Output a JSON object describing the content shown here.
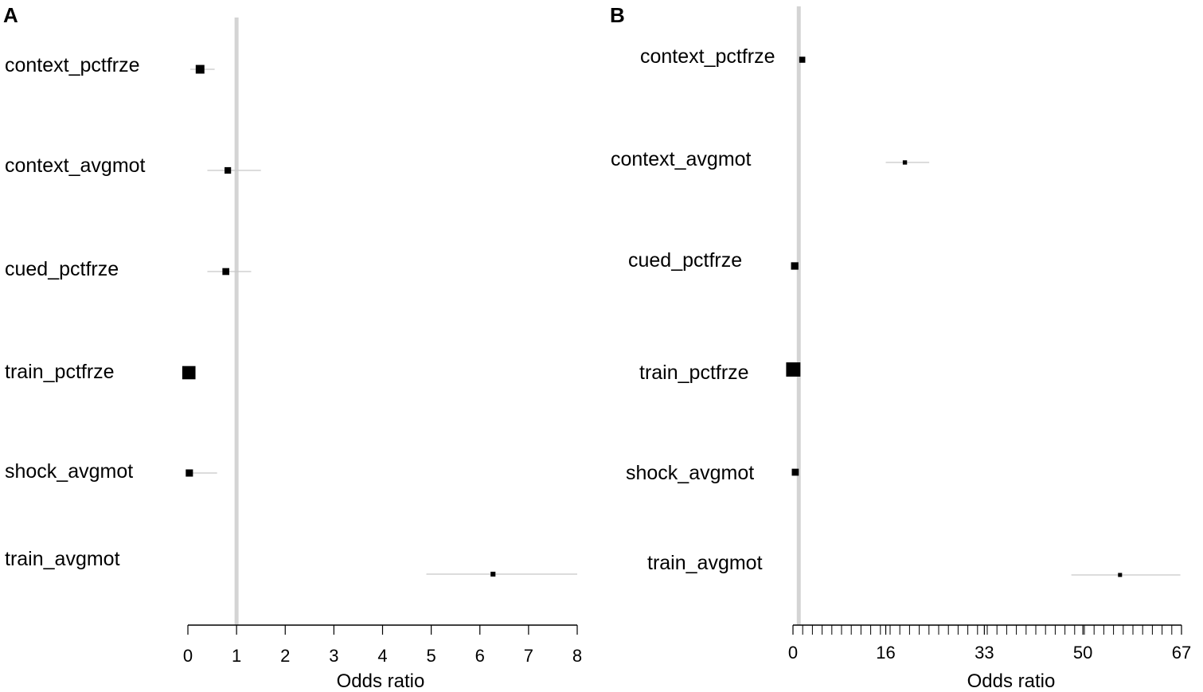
{
  "chart_data": [
    {
      "type": "forest",
      "panel_label": "A",
      "xlabel": "Odds ratio",
      "xlim": [
        0,
        8
      ],
      "ticks": [
        0,
        1,
        2,
        3,
        4,
        5,
        6,
        7,
        8
      ],
      "tick_labels": [
        "0",
        "1",
        "2",
        "3",
        "4",
        "5",
        "6",
        "7",
        "8"
      ],
      "reference_line": 1,
      "rows": [
        {
          "label": "context_pctfrze",
          "or": 0.25,
          "ci": [
            0.05,
            0.55
          ],
          "weight": 1.6
        },
        {
          "label": "context_avgmot",
          "or": 0.82,
          "ci": [
            0.4,
            1.5
          ],
          "weight": 0.9
        },
        {
          "label": "cued_pctfrze",
          "or": 0.78,
          "ci": [
            0.4,
            1.3
          ],
          "weight": 1.0
        },
        {
          "label": "train_pctfrze",
          "or": 0.02,
          "ci": [
            0.0,
            0.15
          ],
          "weight": 3.7
        },
        {
          "label": "shock_avgmot",
          "or": 0.03,
          "ci": [
            0.0,
            0.6
          ],
          "weight": 1.1
        },
        {
          "label": "train_avgmot",
          "or": 6.27,
          "ci": [
            4.9,
            8.0
          ],
          "weight": 0.5
        }
      ]
    },
    {
      "type": "forest",
      "panel_label": "B",
      "xlabel": "Odds ratio",
      "xlim": [
        0,
        67
      ],
      "ticks": [
        0,
        16,
        33,
        50,
        67
      ],
      "tick_labels": [
        "0",
        "16",
        "33",
        "50",
        "67"
      ],
      "minor_tick_step": 1.675,
      "reference_line": 1,
      "rows": [
        {
          "label": "context_pctfrze",
          "or": 1.6,
          "ci": [
            1.0,
            2.0
          ],
          "weight": 0.9
        },
        {
          "label": "context_avgmot",
          "or": 19.3,
          "ci": [
            16.0,
            23.5
          ],
          "weight": 0.45
        },
        {
          "label": "cued_pctfrze",
          "or": 0.3,
          "ci": [
            0.0,
            1.0
          ],
          "weight": 1.35
        },
        {
          "label": "train_pctfrze",
          "or": 0.05,
          "ci": [
            0.0,
            0.2
          ],
          "weight": 5.0
        },
        {
          "label": "shock_avgmot",
          "or": 0.4,
          "ci": [
            0.0,
            1.0
          ],
          "weight": 1.2
        },
        {
          "label": "train_avgmot",
          "or": 56.4,
          "ci": [
            48.0,
            66.8
          ],
          "weight": 0.4
        }
      ]
    }
  ]
}
